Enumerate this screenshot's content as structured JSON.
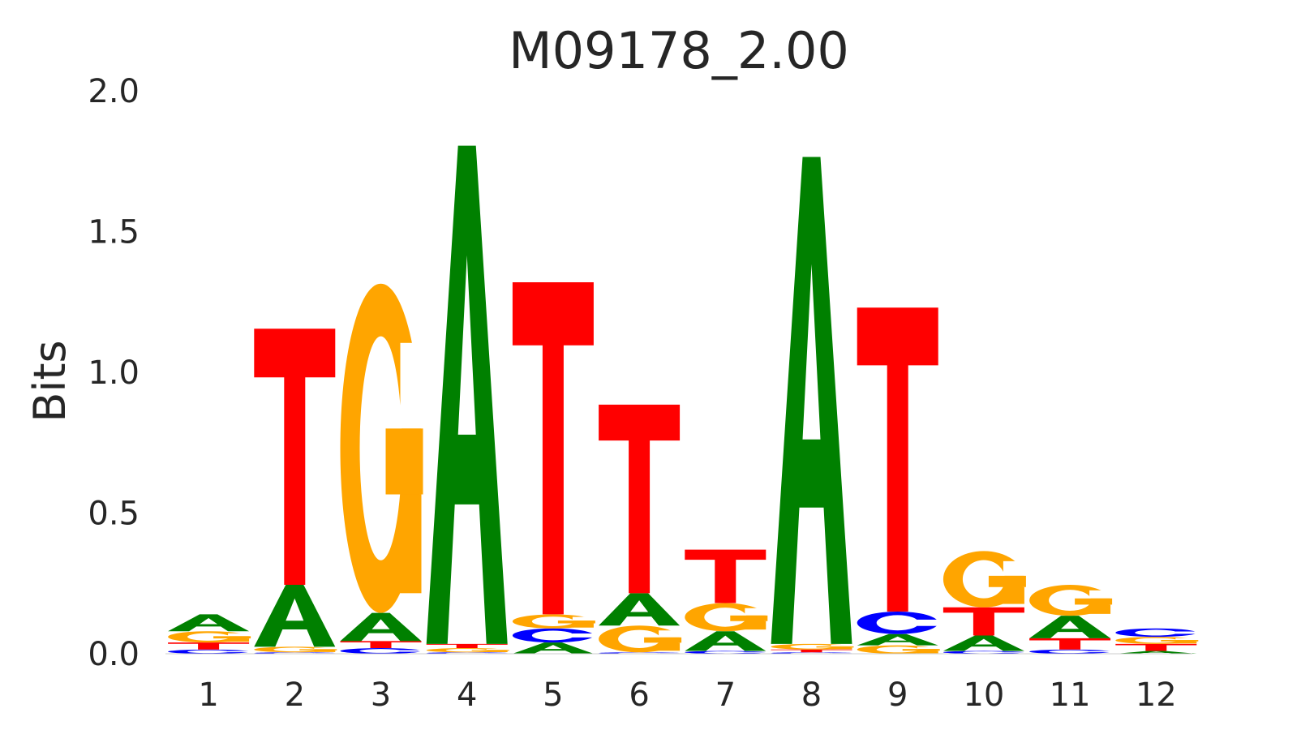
{
  "chart_data": {
    "type": "sequence-logo",
    "title": "M09178_2.00",
    "xlabel": "",
    "ylabel": "Bits",
    "ylim": [
      0,
      2.0
    ],
    "yticks": [
      "0.0",
      "0.5",
      "1.0",
      "1.5",
      "2.0"
    ],
    "categories": [
      "1",
      "2",
      "3",
      "4",
      "5",
      "6",
      "7",
      "8",
      "9",
      "10",
      "11",
      "12"
    ],
    "grid": false,
    "colors": {
      "A": "#008000",
      "C": "#0000ff",
      "G": "#ffa500",
      "T": "#ff0000"
    },
    "positions": [
      [
        [
          "C",
          0.015
        ],
        [
          "T",
          0.025
        ],
        [
          "G",
          0.04
        ],
        [
          "A",
          0.06
        ]
      ],
      [
        [
          "C",
          0.005
        ],
        [
          "G",
          0.02
        ],
        [
          "A",
          0.22
        ],
        [
          "T",
          0.91
        ]
      ],
      [
        [
          "C",
          0.02
        ],
        [
          "T",
          0.025
        ],
        [
          "A",
          0.1
        ],
        [
          "G",
          1.17
        ]
      ],
      [
        [
          "C",
          0.005
        ],
        [
          "G",
          0.015
        ],
        [
          "T",
          0.015
        ],
        [
          "A",
          1.77
        ]
      ],
      [
        [
          "A",
          0.04
        ],
        [
          "C",
          0.05
        ],
        [
          "G",
          0.05
        ],
        [
          "T",
          1.18
        ]
      ],
      [
        [
          "C",
          0.005
        ],
        [
          "G",
          0.095
        ],
        [
          "A",
          0.115
        ],
        [
          "T",
          0.67
        ]
      ],
      [
        [
          "C",
          0.01
        ],
        [
          "A",
          0.07
        ],
        [
          "G",
          0.1
        ],
        [
          "T",
          0.19
        ]
      ],
      [
        [
          "C",
          0.005
        ],
        [
          "T",
          0.01
        ],
        [
          "G",
          0.02
        ],
        [
          "A",
          1.73
        ]
      ],
      [
        [
          "G",
          0.03
        ],
        [
          "A",
          0.04
        ],
        [
          "C",
          0.08
        ],
        [
          "T",
          1.08
        ]
      ],
      [
        [
          "C",
          0.01
        ],
        [
          "A",
          0.055
        ],
        [
          "T",
          0.1
        ],
        [
          "G",
          0.2
        ]
      ],
      [
        [
          "C",
          0.015
        ],
        [
          "T",
          0.04
        ],
        [
          "A",
          0.08
        ],
        [
          "G",
          0.11
        ]
      ],
      [
        [
          "A",
          0.01
        ],
        [
          "T",
          0.025
        ],
        [
          "G",
          0.025
        ],
        [
          "C",
          0.03
        ]
      ]
    ]
  }
}
